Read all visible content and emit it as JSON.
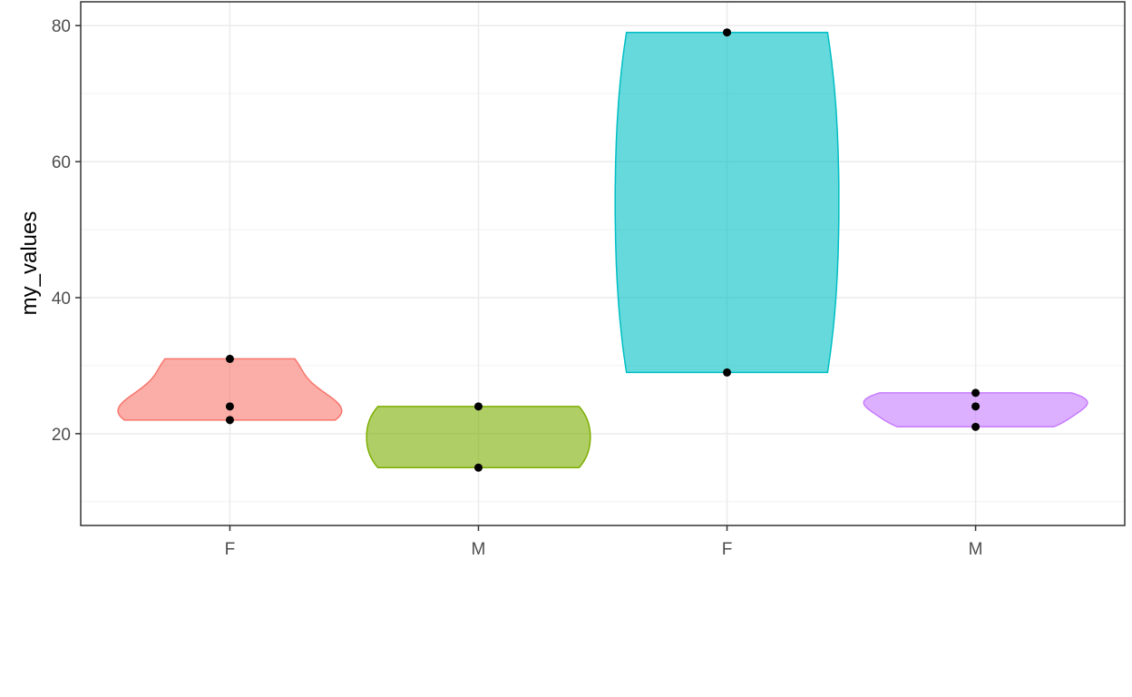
{
  "chart_data": {
    "type": "violin",
    "ylabel": "my_values",
    "xlabel": "",
    "ylim": [
      6.5,
      83.5
    ],
    "yticks": [
      20,
      40,
      60,
      80
    ],
    "grid": true,
    "categories": [
      "F",
      "M",
      "F",
      "M"
    ],
    "groups": [
      {
        "category": "F",
        "color": "#F8766D",
        "points": [
          31,
          24,
          22
        ],
        "range": [
          22,
          31
        ]
      },
      {
        "category": "M",
        "color": "#7CAE00",
        "points": [
          24,
          15
        ],
        "range": [
          15,
          24
        ]
      },
      {
        "category": "F",
        "color": "#00BFC4",
        "points": [
          79,
          29
        ],
        "range": [
          29,
          79
        ]
      },
      {
        "category": "M",
        "color": "#C77CFF",
        "points": [
          26,
          24,
          21
        ],
        "range": [
          21,
          26
        ]
      }
    ]
  }
}
